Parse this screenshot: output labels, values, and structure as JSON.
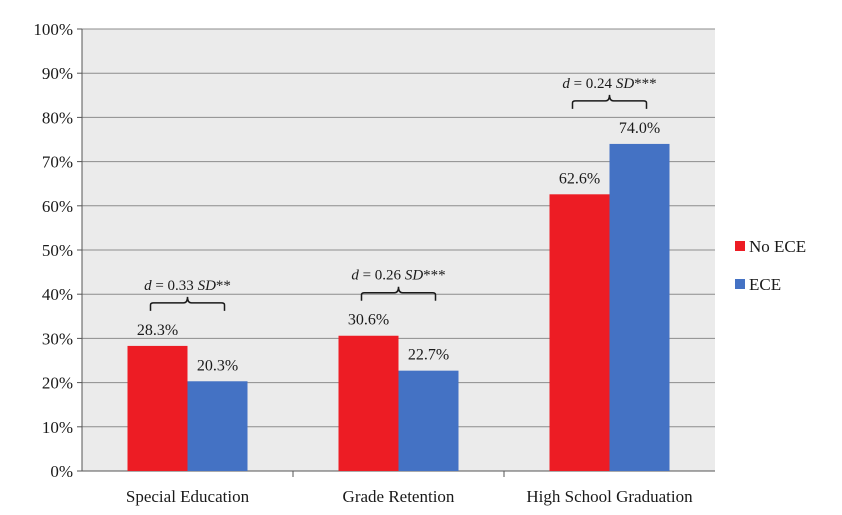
{
  "chart_data": {
    "type": "bar",
    "categories": [
      "Special Education",
      "Grade Retention",
      "High School Graduation"
    ],
    "series": [
      {
        "name": "No ECE",
        "color": "#ED1C24",
        "values": [
          28.3,
          30.6,
          62.6
        ],
        "labels": [
          "28.3%",
          "30.6%",
          "62.6%"
        ]
      },
      {
        "name": "ECE",
        "color": "#4472C4",
        "values": [
          20.3,
          22.7,
          74.0
        ],
        "labels": [
          "20.3%",
          "22.7%",
          "74.0%"
        ]
      }
    ],
    "ylim": [
      0,
      100
    ],
    "yticks": [
      "0%",
      "10%",
      "20%",
      "30%",
      "40%",
      "50%",
      "60%",
      "70%",
      "80%",
      "90%",
      "100%"
    ],
    "grid": true,
    "legend": "right",
    "plot_background": "#EBEBEB",
    "annotations": [
      {
        "category": "Special Education",
        "prefix": "d",
        "mid": " = 0.33 ",
        "sd": "SD",
        "stars": "**"
      },
      {
        "category": "Grade Retention",
        "prefix": "d",
        "mid": " = 0.26 ",
        "sd": "SD",
        "stars": "***"
      },
      {
        "category": "High School Graduation",
        "prefix": "d",
        "mid": " = 0.24 ",
        "sd": "SD",
        "stars": "***"
      }
    ]
  }
}
